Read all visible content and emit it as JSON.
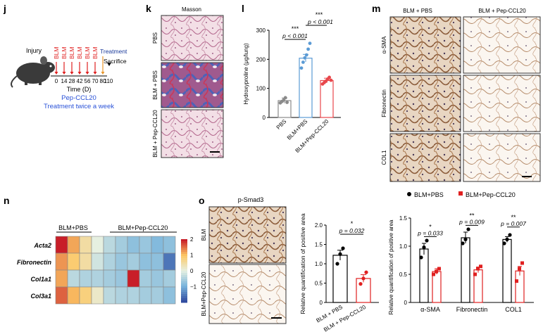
{
  "panel_j": {
    "letter": "j",
    "injury": "Injury",
    "blm": "BLM",
    "days": [
      "0",
      "14",
      "28",
      "42",
      "56",
      "70",
      "80"
    ],
    "treatment": "Treatment",
    "sacrifice": "Sacrifice",
    "day_end": "110",
    "xlabel": "Time (D)",
    "drug": "Pep-CCL20",
    "schedule": "Treatment twice a week",
    "colors": {
      "blm": "#e02020",
      "drug": "#2a52d8",
      "treat": "#1a3a9a"
    }
  },
  "panel_k": {
    "letter": "k",
    "title": "Masson",
    "rows": [
      "PBS",
      "BLM + PBS",
      "BLM + Pep-CCL20"
    ]
  },
  "panel_l": {
    "letter": "l",
    "chart_data": {
      "type": "bar",
      "categories": [
        "PBS",
        "BLM+PBS",
        "BLM+Pep-CCL20"
      ],
      "values": [
        58,
        204,
        127
      ],
      "errors": [
        9,
        13,
        8
      ],
      "points": [
        [
          50,
          55,
          60,
          68,
          52
        ],
        [
          170,
          190,
          205,
          215,
          235,
          255
        ],
        [
          115,
          120,
          125,
          132,
          138,
          128
        ]
      ],
      "ylabel": "Hydroxyproline (μg/lung)",
      "ylim": [
        0,
        300
      ],
      "yticks": [
        0,
        100,
        200,
        300
      ],
      "significance": [
        {
          "stars": "***",
          "p": "p < 0.001",
          "from": 0,
          "to": 1
        },
        {
          "stars": "***",
          "p": "p < 0.001",
          "from": 1,
          "to": 2
        }
      ],
      "colors": [
        "#8a8a8a",
        "#5b9bd5",
        "#e8474b"
      ]
    }
  },
  "panel_m": {
    "letter": "m",
    "cols": [
      "BLM + PBS",
      "BLM + Pep-CCL20"
    ],
    "rows": [
      "α-SMA",
      "Fibronectin",
      "COL1"
    ]
  },
  "panel_n": {
    "letter": "n",
    "groups": [
      "BLM+PBS",
      "BLM+Pep-CCL20"
    ],
    "genes": [
      "Acta2",
      "Fibronectin",
      "Col1a1",
      "Col3a1"
    ],
    "chart_data": {
      "type": "heatmap",
      "rows": [
        "Acta2",
        "Fibronectin",
        "Col1a1",
        "Col3a1"
      ],
      "values": [
        [
          2.0,
          1.2,
          0.5,
          0.0,
          -0.4,
          -0.6,
          -0.8,
          -0.7,
          -0.9,
          -0.8
        ],
        [
          1.3,
          0.9,
          0.5,
          -0.2,
          -0.5,
          -0.7,
          -0.6,
          -0.8,
          -0.8,
          -1.6
        ],
        [
          1.2,
          -0.4,
          -0.5,
          -0.5,
          -0.6,
          -0.7,
          2.0,
          -0.6,
          -0.7,
          -0.6
        ],
        [
          1.6,
          1.1,
          0.8,
          0.2,
          -0.4,
          -0.5,
          -0.5,
          -0.6,
          -0.6,
          -0.8
        ]
      ],
      "scale_ticks": [
        "2",
        "1",
        "0",
        "−1"
      ]
    }
  },
  "panel_o": {
    "letter": "o",
    "title": "p-Smad3",
    "rows": [
      "BLM",
      "BLM+Pep-CCL20"
    ],
    "chart_data": {
      "type": "bar",
      "categories": [
        "BLM + PBS",
        "BLM + Pep-CCL20"
      ],
      "values": [
        1.22,
        0.62
      ],
      "errors": [
        0.13,
        0.1
      ],
      "points": [
        [
          1.0,
          1.25,
          1.4
        ],
        [
          0.48,
          0.62,
          0.78
        ]
      ],
      "ylabel": "Relative quantification of positive area",
      "ylim": [
        0,
        2.0
      ],
      "yticks": [
        "0",
        "0.5",
        "1.0",
        "1.5",
        "2.0"
      ],
      "significance": {
        "stars": "*",
        "p": "p = 0.032"
      },
      "colors": [
        "#000000",
        "#e02020"
      ]
    }
  },
  "panel_p": {
    "legend": [
      "BLM+PBS",
      "BLM+Pep-CCL20"
    ],
    "chart_data": {
      "type": "bar",
      "categories": [
        "α-SMA",
        "Fibronectin",
        "COL1"
      ],
      "series": [
        {
          "name": "BLM+PBS",
          "values": [
            0.95,
            1.15,
            1.12
          ],
          "errors": [
            0.1,
            0.1,
            0.05
          ],
          "points": [
            [
              0.8,
              0.98,
              1.1
            ],
            [
              1.05,
              1.12,
              1.3
            ],
            [
              1.05,
              1.12,
              1.2
            ]
          ]
        },
        {
          "name": "BLM+Pep-CCL20",
          "values": [
            0.55,
            0.58,
            0.56
          ],
          "errors": [
            0.05,
            0.05,
            0.08
          ],
          "points": [
            [
              0.5,
              0.55,
              0.6
            ],
            [
              0.5,
              0.6,
              0.64
            ],
            [
              0.38,
              0.6,
              0.7
            ]
          ]
        }
      ],
      "ylabel": "Relative quantification of positive area",
      "ylim": [
        0,
        1.5
      ],
      "yticks": [
        "0",
        "0.5",
        "1.0",
        "1.5"
      ],
      "significance": [
        {
          "stars": "*",
          "p": "p = 0.033"
        },
        {
          "stars": "**",
          "p": "p = 0.009"
        },
        {
          "stars": "**",
          "p": "p = 0.007"
        }
      ],
      "colors": [
        "#000000",
        "#e02020"
      ]
    }
  }
}
